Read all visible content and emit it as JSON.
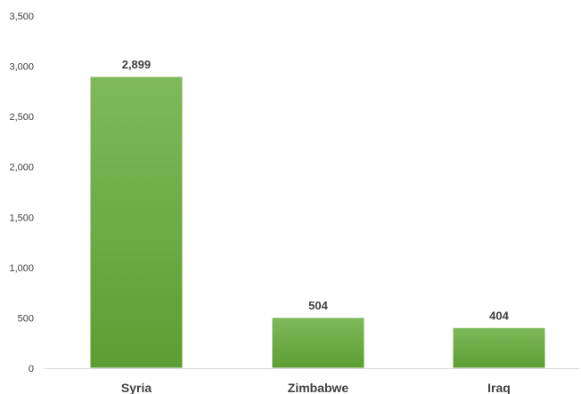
{
  "chart_data": {
    "type": "bar",
    "categories": [
      "Syria",
      "Zimbabwe",
      "Iraq"
    ],
    "values": [
      2899,
      504,
      404
    ],
    "data_labels": [
      "2,899",
      "504",
      "404"
    ],
    "ylim": [
      0,
      3500
    ],
    "yticks": [
      0,
      500,
      1000,
      1500,
      2000,
      2500,
      3000,
      3500
    ],
    "ytick_labels": [
      "0",
      "500",
      "1,000",
      "1,500",
      "2,000",
      "2,500",
      "3,000",
      "3,500"
    ],
    "title": "",
    "xlabel": "",
    "ylabel": "",
    "grid": false,
    "legend": "none",
    "colors": {
      "bar_top": "#7fb95a",
      "bar_bottom": "#5c9e33",
      "bar_edge": "#ffffff",
      "axis": "#d9d9d9",
      "text": "#404040"
    }
  }
}
